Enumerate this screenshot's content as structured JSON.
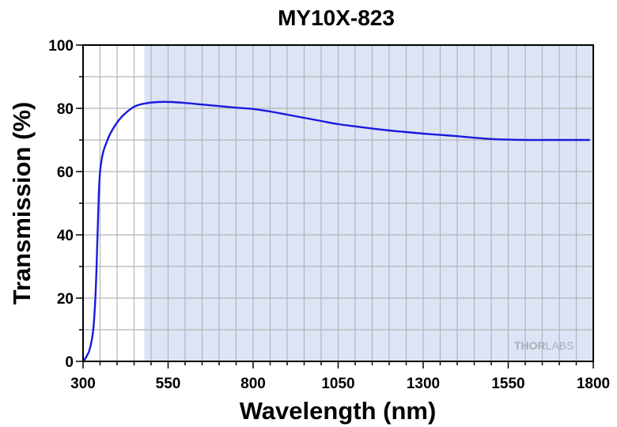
{
  "chart_data": {
    "type": "line",
    "title": "MY10X-823",
    "xlabel": "Wavelength (nm)",
    "ylabel": "Transmission (%)",
    "xlim": [
      300,
      1800
    ],
    "ylim": [
      0,
      100
    ],
    "x_ticks": [
      "300",
      "550",
      "800",
      "1050",
      "1300",
      "1550",
      "1800"
    ],
    "y_ticks": [
      "0",
      "20",
      "40",
      "60",
      "80",
      "100"
    ],
    "grid": true,
    "highlight_band": {
      "x_range": [
        480,
        1800
      ],
      "color": "#dce4f6"
    },
    "series": [
      {
        "color": "#1a1adc",
        "x": [
          300,
          310,
          320,
          330,
          337,
          342,
          346,
          350,
          355,
          360,
          370,
          380,
          400,
          420,
          450,
          480,
          520,
          560,
          600,
          650,
          700,
          750,
          800,
          850,
          900,
          950,
          1000,
          1050,
          1100,
          1150,
          1200,
          1250,
          1300,
          1350,
          1400,
          1450,
          1500,
          1550,
          1600,
          1650,
          1700,
          1750,
          1790
        ],
        "y": [
          0,
          1.5,
          4,
          10,
          22,
          38,
          52,
          60,
          64,
          66.5,
          69.5,
          72,
          75.5,
          78,
          80.5,
          81.5,
          82,
          82,
          81.7,
          81.2,
          80.7,
          80.2,
          79.8,
          79,
          78,
          77,
          76,
          75,
          74.3,
          73.6,
          73,
          72.5,
          72,
          71.6,
          71.2,
          70.7,
          70.3,
          70.1,
          70,
          70,
          70,
          70,
          70
        ]
      }
    ]
  },
  "watermark": {
    "brand_part1": "THOR",
    "brand_part2": "LABS"
  }
}
